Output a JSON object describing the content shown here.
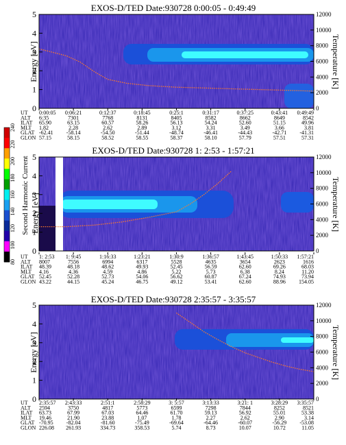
{
  "colorbar": {
    "label": "Second Harmonic Current",
    "ticks": [
      "80",
      "100",
      "120",
      "140",
      "160",
      "180",
      "200",
      "220",
      "240"
    ],
    "colors": [
      "#000000",
      "#ff00ff",
      "#2200aa",
      "#0a2a9a",
      "#1a4fd0",
      "#19a0f0",
      "#00f0f0",
      "#00a000",
      "#00ff00",
      "#ffff00",
      "#ffa000",
      "#ff0000",
      "#d00000"
    ]
  },
  "chart_data": [
    {
      "type": "heatmap",
      "title": "EXOS-D/TED   Date:930728  0:00:05 - 0:49:49",
      "ylabel": "Energy [eV]",
      "y2label": "Temperature [K]",
      "ylim": [
        0,
        5
      ],
      "y2lim": [
        0,
        12000
      ],
      "yticks": [
        "0",
        "1",
        "2",
        "3",
        "4",
        "5"
      ],
      "y2ticks": [
        "0",
        "2000",
        "4000",
        "6000",
        "8000",
        "10000",
        "12000"
      ],
      "row_labels": [
        "UT",
        "ALT",
        "ILAT",
        "MLT",
        "GLAT",
        "GLON"
      ],
      "columns": [
        [
          "0:00:05",
          "6:35",
          "65.90",
          "1.82",
          "-62.41",
          "57.15"
        ],
        [
          "0:06:21",
          "7301",
          "63.15",
          "2.28",
          "-58.14",
          "58.15"
        ],
        [
          "0:12:37",
          "7768",
          "60.57",
          "2.62",
          "-54.50",
          "58.52"
        ],
        [
          "0:18:45",
          "8131",
          "58.26",
          "2.89",
          "-51.44",
          "58.55"
        ],
        [
          "0:25:1",
          "8405",
          "56.13",
          "3.12",
          "-48.74",
          "58.37"
        ],
        [
          "0:31:17",
          "8582",
          "54.24",
          "3.31",
          "-46.41",
          "58.10"
        ],
        [
          "0:37:25",
          "8662",
          "52.60",
          "3.49",
          "-44.43",
          "57.79"
        ],
        [
          "0:43:41",
          "8649",
          "51.15",
          "3.66",
          "-42.71",
          "57.51"
        ],
        [
          "0:49:49",
          "8542",
          "49.96",
          "3.81",
          "-41.31",
          "57.31"
        ]
      ],
      "temperature_curve": [
        [
          0.0,
          7600
        ],
        [
          0.1,
          6700
        ],
        [
          0.15,
          5900
        ],
        [
          0.2,
          4700
        ],
        [
          0.25,
          3700
        ],
        [
          0.32,
          3200
        ],
        [
          0.4,
          2900
        ],
        [
          0.5,
          2700
        ],
        [
          0.6,
          2600
        ],
        [
          0.7,
          2500
        ],
        [
          0.8,
          2400
        ],
        [
          0.9,
          2300
        ],
        [
          1.0,
          2200
        ]
      ]
    },
    {
      "type": "heatmap",
      "title": "EXOS-D/TED   Date:930728  1: 2:53 - 1:57:21",
      "ylabel": "Energy [eV]",
      "y2label": "Temperature [K]",
      "ylim": [
        0,
        5
      ],
      "y2lim": [
        0,
        12000
      ],
      "yticks": [
        "0",
        "1",
        "2",
        "3",
        "4",
        "5"
      ],
      "y2ticks": [
        "0",
        "2000",
        "4000",
        "6000",
        "8000",
        "10000",
        "12000"
      ],
      "row_labels": [
        "UT",
        "ALT",
        "ILAT",
        "MLT",
        "GLAT",
        "GLON"
      ],
      "columns": [
        [
          "1: 2:53",
          "8007",
          "48.39",
          "4.16",
          "52.45",
          "43.22"
        ],
        [
          "1: 9:45",
          "7556",
          "48.18",
          "4.36",
          "52.28",
          "44.15"
        ],
        [
          "1:16:33",
          "6994",
          "48.62",
          "4.59",
          "52.73",
          "45.24"
        ],
        [
          "1:23:21",
          "6317",
          "49.93",
          "4.86",
          "54.06",
          "46.75"
        ],
        [
          "1:30:9",
          "5528",
          "52.45",
          "5.22",
          "56.62",
          "49.12"
        ],
        [
          "1:36:57",
          "4635",
          "56.59",
          "5.73",
          "60.87",
          "53.41"
        ],
        [
          "1:43:45",
          "3654",
          "62.60",
          "6.38",
          "67.24",
          "62.60"
        ],
        [
          "1:50:33",
          "2623",
          "69.26",
          "8.24",
          "74.93",
          "88.96"
        ],
        [
          "1:57:21",
          "1616",
          "68.03",
          "11.20",
          "73.94",
          "154.05"
        ]
      ],
      "temperature_curve": [
        [
          0.0,
          3100
        ],
        [
          0.1,
          3100
        ],
        [
          0.2,
          3300
        ],
        [
          0.3,
          3700
        ],
        [
          0.4,
          4300
        ],
        [
          0.5,
          5000
        ],
        [
          0.55,
          6000
        ],
        [
          0.6,
          7200
        ],
        [
          0.65,
          8600
        ],
        [
          0.7,
          10200
        ]
      ]
    },
    {
      "type": "heatmap",
      "title": "EXOS-D/TED   Date:930728  2:35:57 - 3:35:57",
      "ylabel": "Energy [eV]",
      "y2label": "Temperature [K]",
      "ylim": [
        0,
        5
      ],
      "y2lim": [
        0,
        12000
      ],
      "yticks": [
        "0",
        "1",
        "2",
        "3",
        "4",
        "5"
      ],
      "y2ticks": [
        "0",
        "2000",
        "4000",
        "6000",
        "8000",
        "10000",
        "12000"
      ],
      "row_labels": [
        "UT",
        "ALT",
        "ILAT",
        "MLT",
        "GLAT",
        "GLON"
      ],
      "columns": [
        [
          "2:35:57",
          "2594",
          "63.73",
          "19.46",
          "-70.95",
          "226.08"
        ],
        [
          "2:43:33",
          "3750",
          "67.99",
          "21.90",
          "-82.04",
          "261.93"
        ],
        [
          "2:51:1",
          "4817",
          "67.03",
          "23.88",
          "-81.60",
          "334.73"
        ],
        [
          "2:58:29",
          "5773",
          "64.46",
          "1.07",
          "-75.49",
          "358.53"
        ],
        [
          "3: 5:57",
          "6599",
          "61.70",
          "1.78",
          "-69.64",
          "5.74"
        ],
        [
          "3:13:33",
          "7298",
          "59.13",
          "2.27",
          "-64.46",
          "8.73"
        ],
        [
          "3:21: 1",
          "7844",
          "56.92",
          "2.62",
          "-60.07",
          "10.07"
        ],
        [
          "3:28:29",
          "8252",
          "55.01",
          "2.90",
          "-56.29",
          "10.72"
        ],
        [
          "3:35:57",
          "8521",
          "53.38",
          "3.14",
          "-53.08",
          "11.05"
        ]
      ],
      "temperature_curve": [
        [
          0.5,
          11000
        ],
        [
          0.55,
          9800
        ],
        [
          0.6,
          8600
        ],
        [
          0.65,
          7600
        ],
        [
          0.7,
          6700
        ],
        [
          0.75,
          5900
        ],
        [
          0.8,
          5300
        ],
        [
          0.85,
          4700
        ],
        [
          0.9,
          4200
        ],
        [
          0.95,
          3800
        ],
        [
          1.0,
          3500
        ]
      ]
    }
  ]
}
